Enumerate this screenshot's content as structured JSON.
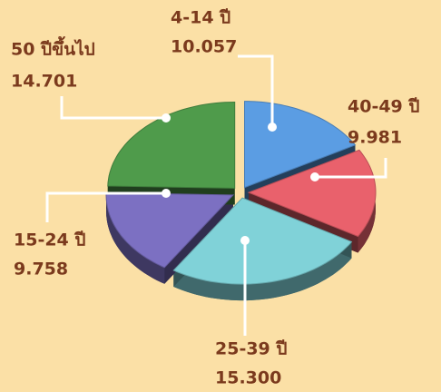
{
  "chart_data": {
    "type": "pie",
    "categories": [
      "4-14 ปี",
      "40-49 ปี",
      "25-39 ปี",
      "15-24 ปี",
      "50 ปีขึ้นไป"
    ],
    "values": [
      10.057,
      9.981,
      15.3,
      9.758,
      14.701
    ],
    "value_labels": [
      "10.057",
      "9.981",
      "15.300",
      "9.758",
      "14.701"
    ],
    "colors": [
      "#5b9de3",
      "#e9616c",
      "#80d2d8",
      "#7c70c2",
      "#4f9b4b"
    ]
  }
}
